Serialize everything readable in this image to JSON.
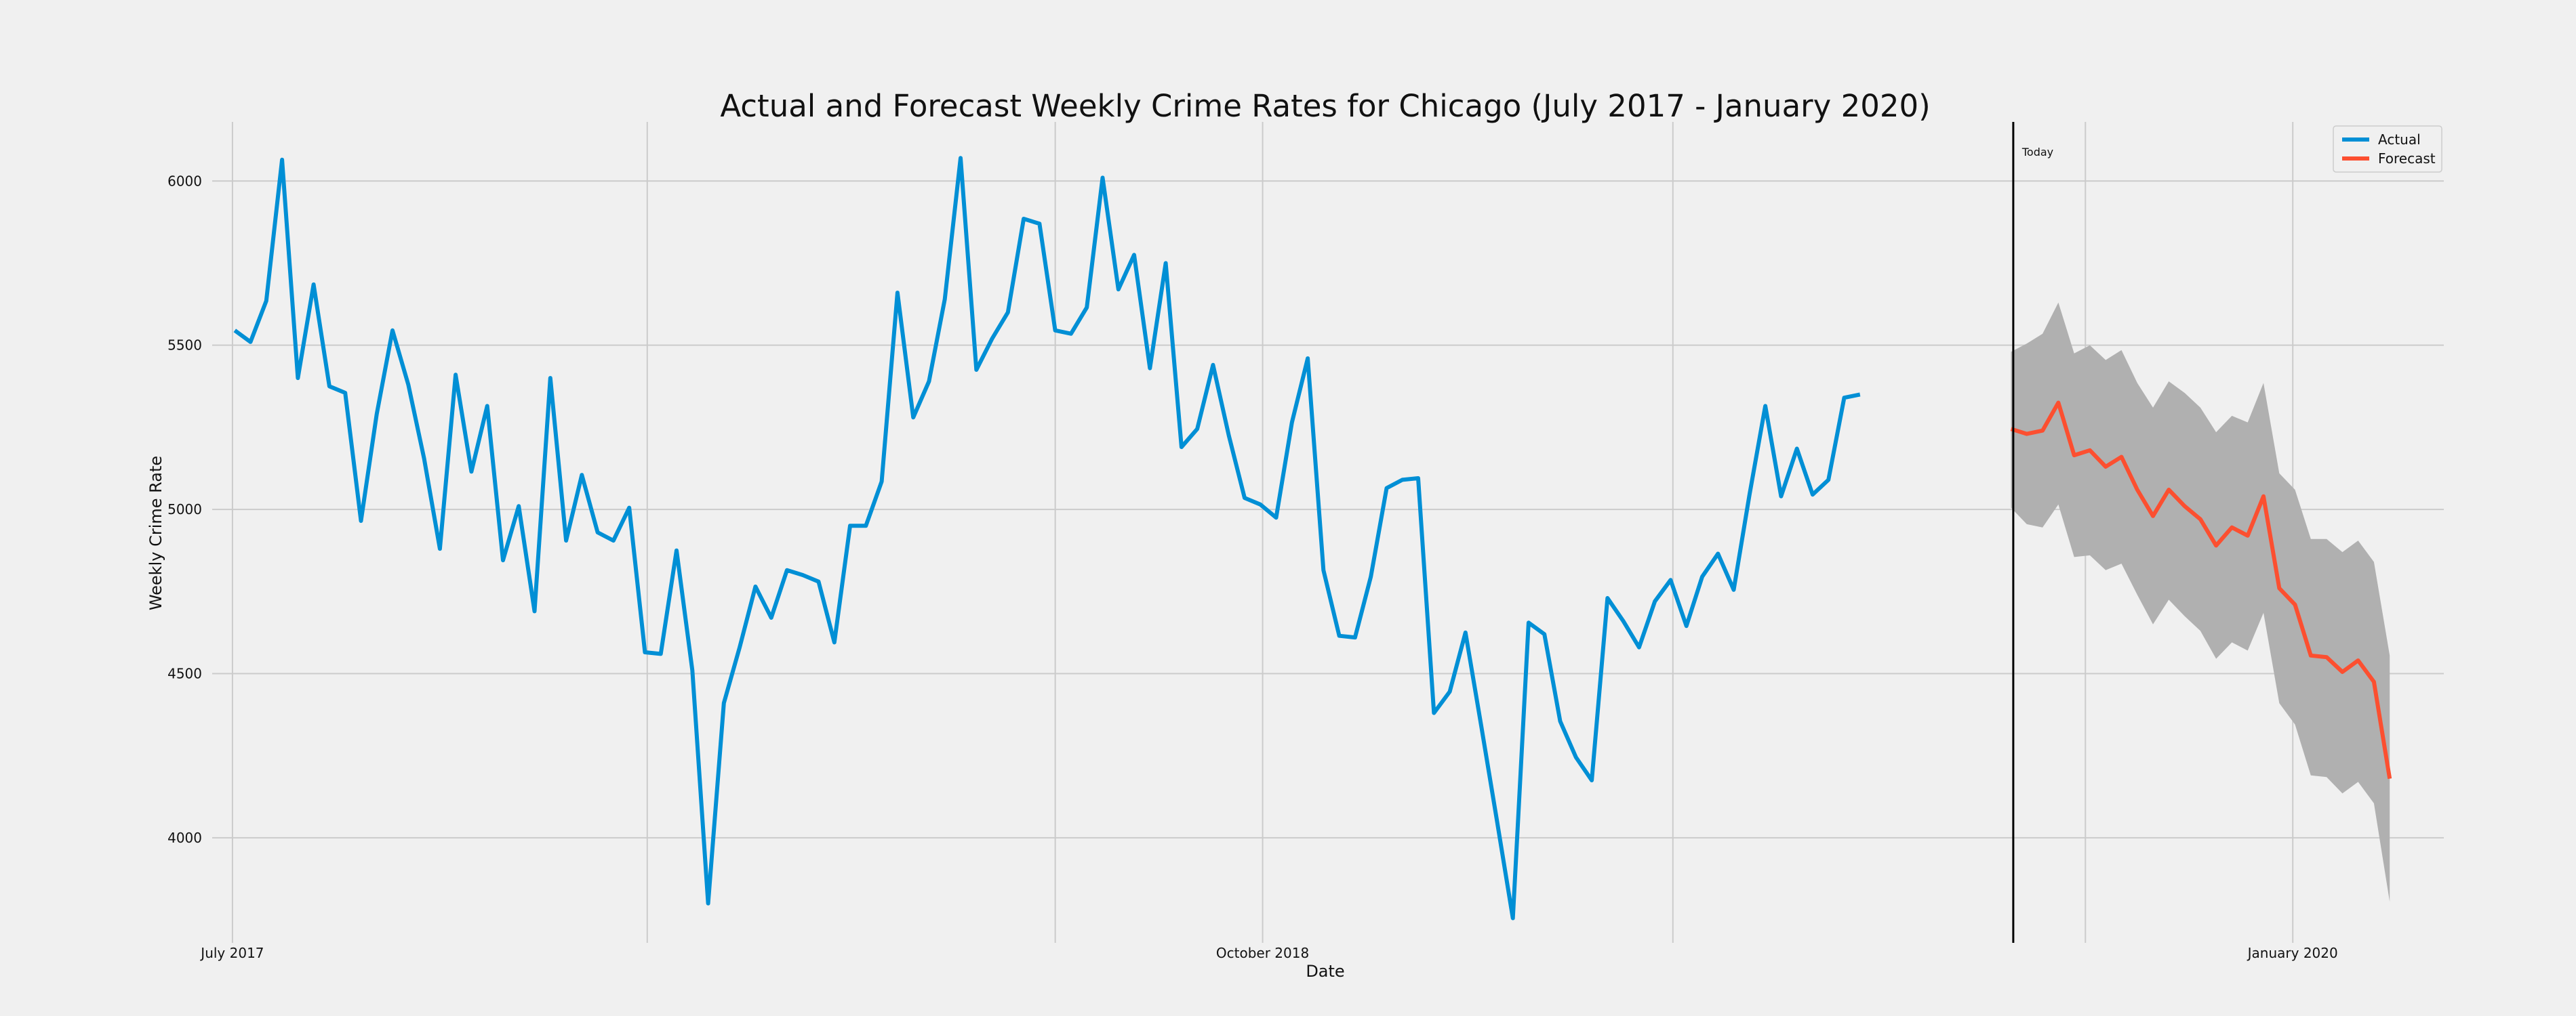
{
  "chart_data": {
    "type": "line",
    "title": "Actual and Forecast Weekly Crime Rates for Chicago (July 2017 - January 2020)",
    "xlabel": "Date",
    "ylabel": "Weekly Crime Rate",
    "x_axis": {
      "type": "time",
      "range": [
        "2017-06-22",
        "2020-03-08"
      ],
      "ticks": [
        {
          "date": "2017-07-01",
          "label": "July 2017"
        },
        {
          "date": "2018-01-01",
          "label": ""
        },
        {
          "date": "2018-07-01",
          "label": ""
        },
        {
          "date": "2018-10-01",
          "label": "October 2018"
        },
        {
          "date": "2019-04-01",
          "label": ""
        },
        {
          "date": "2019-10-01",
          "label": ""
        },
        {
          "date": "2020-01-01",
          "label": "January 2020"
        }
      ]
    },
    "ylim": [
      3680,
      6180
    ],
    "yticks": [
      4000,
      4500,
      5000,
      5500,
      6000
    ],
    "grid": true,
    "legend": {
      "position": "top-right",
      "entries": [
        {
          "label": "Actual",
          "color": "#008fd5"
        },
        {
          "label": "Forecast",
          "color": "#fc4f30"
        }
      ]
    },
    "annotation": {
      "label": "Today",
      "date": "2019-08-30"
    },
    "colors": {
      "actual": "#008fd5",
      "forecast": "#fc4f30",
      "interval": "#b0b0b0",
      "background": "#f0f0f0",
      "today_line": "#000000"
    },
    "series": [
      {
        "name": "Actual",
        "start": "2017-07-02",
        "step_days": 7,
        "values": [
          5545,
          5510,
          5635,
          6065,
          5400,
          5685,
          5375,
          5355,
          4965,
          5290,
          5545,
          5380,
          5155,
          4880,
          5410,
          5115,
          5315,
          4845,
          5010,
          4690,
          5400,
          4905,
          5105,
          4930,
          4905,
          5005,
          4565,
          4560,
          4875,
          4510,
          3800,
          4410,
          4580,
          4765,
          4670,
          4815,
          4800,
          4780,
          4595,
          4950,
          4950,
          5085,
          5660,
          5280,
          5390,
          5640,
          6070,
          5425,
          5520,
          5600,
          5885,
          5870,
          5545,
          5535,
          5615,
          6010,
          5670,
          5775,
          5430,
          5750,
          5190,
          5245,
          5440,
          5225,
          5035,
          5015,
          4975,
          5265,
          5460,
          4815,
          4615,
          4610,
          4795,
          5065,
          5090,
          5095,
          4380,
          4445,
          4625,
          4340,
          4050,
          3755,
          4655,
          4620,
          4355,
          4245,
          4175,
          4730,
          4660,
          4580,
          4720,
          4785,
          4645,
          4795,
          4865,
          4755,
          5045,
          5315,
          5040,
          5185,
          5045,
          5090,
          5340,
          5350
        ]
      },
      {
        "name": "Forecast",
        "start": "2019-08-29",
        "step_days": 7,
        "values": [
          5245,
          5230,
          5240,
          5325,
          5165,
          5180,
          5130,
          5160,
          5060,
          4980,
          5060,
          5010,
          4970,
          4890,
          4945,
          4920,
          5040,
          4760,
          4710,
          4555,
          4550,
          4505,
          4540,
          4475,
          4180
        ],
        "lower": [
          5005,
          4955,
          4945,
          5015,
          4855,
          4860,
          4815,
          4835,
          4740,
          4650,
          4725,
          4675,
          4630,
          4545,
          4595,
          4570,
          4685,
          4410,
          4345,
          4190,
          4185,
          4135,
          4170,
          4105,
          3805
        ],
        "upper": [
          5480,
          5505,
          5535,
          5630,
          5475,
          5500,
          5455,
          5485,
          5385,
          5310,
          5390,
          5355,
          5310,
          5235,
          5285,
          5265,
          5385,
          5110,
          5060,
          4910,
          4910,
          4870,
          4905,
          4840,
          4555
        ]
      }
    ]
  }
}
